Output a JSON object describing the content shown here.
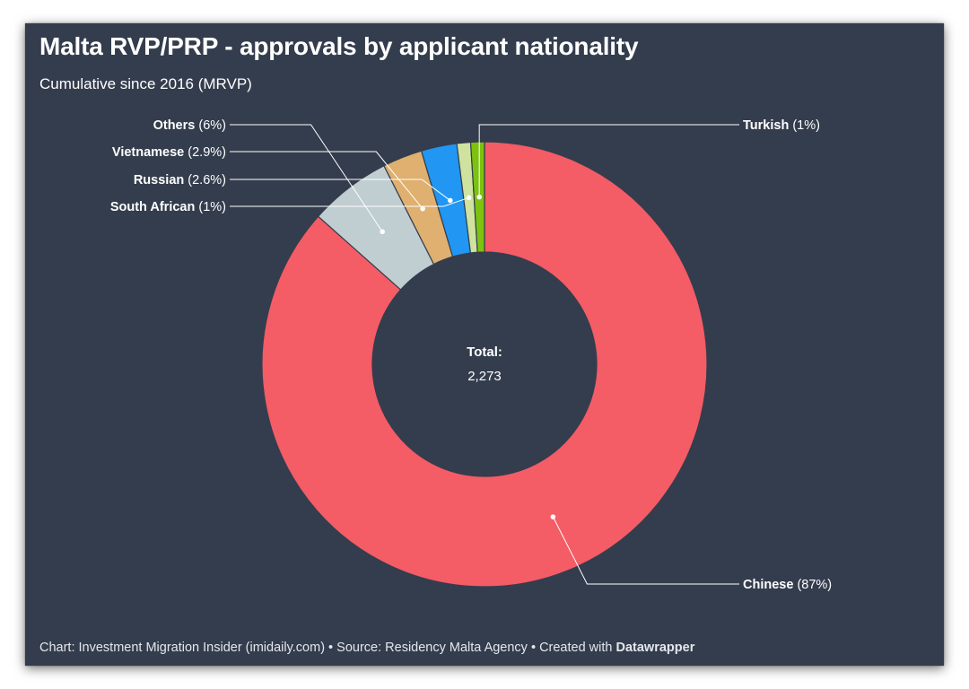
{
  "header": {
    "title": "Malta RVP/PRP - approvals by applicant nationality",
    "subtitle": "Cumulative since 2016 (MRVP)"
  },
  "center": {
    "label": "Total:",
    "value": "2,273"
  },
  "footer": {
    "text": "Chart: Investment Migration Insider (imidaily.com) • Source: Residency Malta Agency • Created with ",
    "brand": "Datawrapper"
  },
  "colors": {
    "background": "#343d4d",
    "leader_line": "#ffffff"
  },
  "chart_data": {
    "type": "pie",
    "donut": true,
    "title": "Malta RVP/PRP - approvals by applicant nationality",
    "subtitle": "Cumulative since 2016 (MRVP)",
    "total": 2273,
    "slices": [
      {
        "name": "Chinese",
        "value": 87,
        "label": "(87%)",
        "color": "#f45c66",
        "side": "right"
      },
      {
        "name": "Others",
        "value": 6,
        "label": "(6%)",
        "color": "#c0cdd1",
        "side": "left"
      },
      {
        "name": "Vietnamese",
        "value": 2.9,
        "label": "(2.9%)",
        "color": "#dfb06f",
        "side": "left"
      },
      {
        "name": "Russian",
        "value": 2.6,
        "label": "(2.6%)",
        "color": "#2196f3",
        "side": "left"
      },
      {
        "name": "South African",
        "value": 1,
        "label": "(1%)",
        "color": "#cfe39e",
        "side": "left"
      },
      {
        "name": "Turkish",
        "value": 1,
        "label": "(1%)",
        "color": "#7cc20e",
        "side": "right"
      }
    ]
  }
}
